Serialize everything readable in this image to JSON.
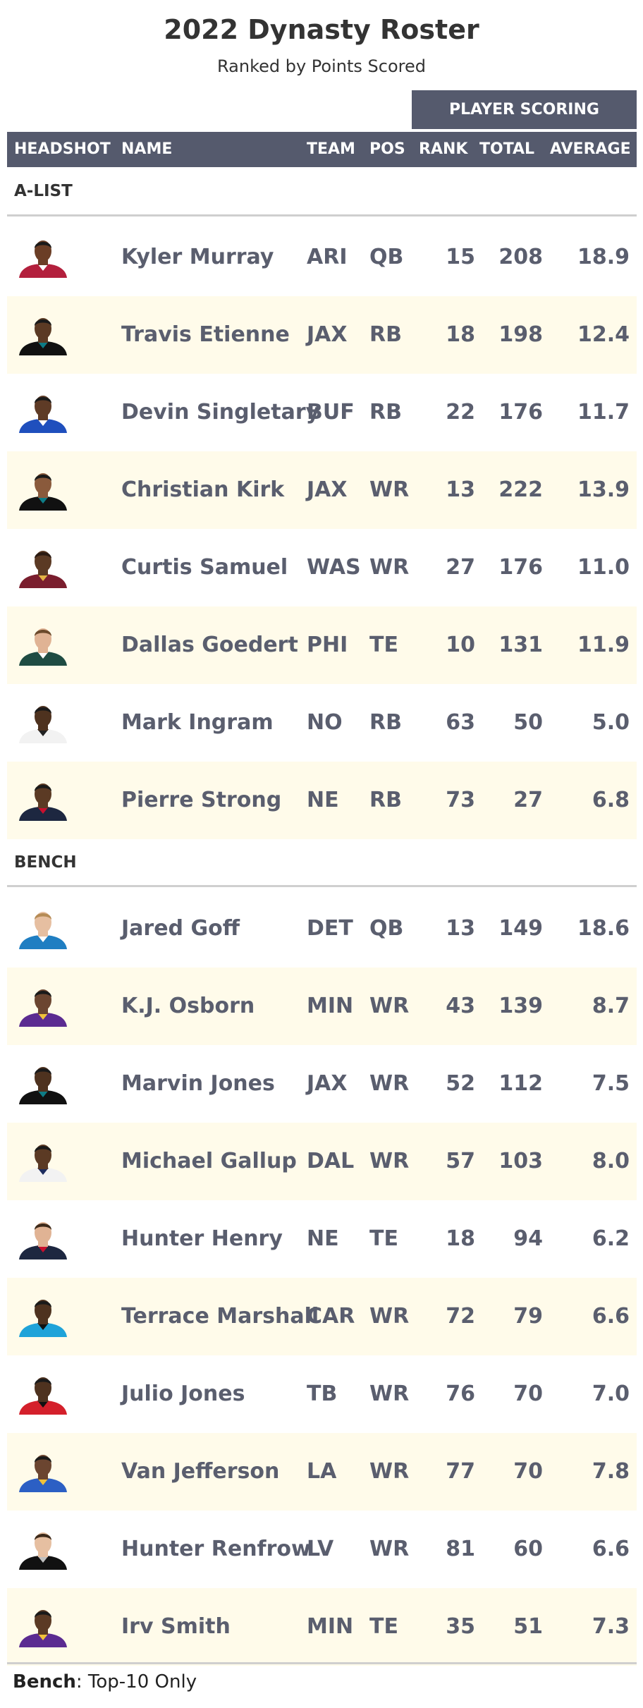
{
  "title": "2022 Dynasty Roster",
  "subtitle": "Ranked by Points Scored",
  "spanner": "PLAYER SCORING",
  "columns": {
    "headshot": "HEADSHOT",
    "name": "NAME",
    "team": "TEAM",
    "pos": "POS",
    "rank": "RANK",
    "total": "TOTAL",
    "average": "AVERAGE"
  },
  "groups": [
    {
      "label": "A-LIST",
      "players": [
        {
          "name": "Kyler Murray",
          "team": "ARI",
          "pos": "QB",
          "rank": "15",
          "total": "208",
          "average": "18.9",
          "jersey": "#b3203d",
          "skin": "#6b3e26",
          "hair": "#1a1a1a",
          "accent": "#ffffff"
        },
        {
          "name": "Travis Etienne",
          "team": "JAX",
          "pos": "RB",
          "rank": "18",
          "total": "198",
          "average": "12.4",
          "jersey": "#111111",
          "skin": "#5b3a24",
          "hair": "#1a1a1a",
          "accent": "#0e7c86"
        },
        {
          "name": "Devin Singletary",
          "team": "BUF",
          "pos": "RB",
          "rank": "22",
          "total": "176",
          "average": "11.7",
          "jersey": "#1f4fbd",
          "skin": "#5e3b26",
          "hair": "#1a1a1a",
          "accent": "#ffffff"
        },
        {
          "name": "Christian Kirk",
          "team": "JAX",
          "pos": "WR",
          "rank": "13",
          "total": "222",
          "average": "13.9",
          "jersey": "#111111",
          "skin": "#8a5a3c",
          "hair": "#1a1a1a",
          "accent": "#0e7c86"
        },
        {
          "name": "Curtis Samuel",
          "team": "WAS",
          "pos": "WR",
          "rank": "27",
          "total": "176",
          "average": "11.0",
          "jersey": "#7a1e2e",
          "skin": "#5b3a24",
          "hair": "#2a1a12",
          "accent": "#e3b344"
        },
        {
          "name": "Dallas Goedert",
          "team": "PHI",
          "pos": "TE",
          "rank": "10",
          "total": "131",
          "average": "11.9",
          "jersey": "#1f4c43",
          "skin": "#e0b394",
          "hair": "#6b4a2c",
          "accent": "#ffffff"
        },
        {
          "name": "Mark Ingram",
          "team": "NO",
          "pos": "RB",
          "rank": "63",
          "total": "50",
          "average": "5.0",
          "jersey": "#f2f2f2",
          "skin": "#4e321f",
          "hair": "#1a1a1a",
          "accent": "#222222"
        },
        {
          "name": "Pierre Strong",
          "team": "NE",
          "pos": "RB",
          "rank": "73",
          "total": "27",
          "average": "6.8",
          "jersey": "#1d2740",
          "skin": "#5b3a24",
          "hair": "#1a1a1a",
          "accent": "#c8102e"
        }
      ]
    },
    {
      "label": "BENCH",
      "players": [
        {
          "name": "Jared Goff",
          "team": "DET",
          "pos": "QB",
          "rank": "13",
          "total": "149",
          "average": "18.6",
          "jersey": "#1f7ec2",
          "skin": "#e6bfa1",
          "hair": "#b58b55",
          "accent": "#ffffff"
        },
        {
          "name": "K.J. Osborn",
          "team": "MIN",
          "pos": "WR",
          "rank": "43",
          "total": "139",
          "average": "8.7",
          "jersey": "#5b2b91",
          "skin": "#6b4530",
          "hair": "#1a1a1a",
          "accent": "#f0c13a"
        },
        {
          "name": "Marvin Jones",
          "team": "JAX",
          "pos": "WR",
          "rank": "52",
          "total": "112",
          "average": "7.5",
          "jersey": "#111111",
          "skin": "#4e321f",
          "hair": "#1a1a1a",
          "accent": "#0e7c86"
        },
        {
          "name": "Michael Gallup",
          "team": "DAL",
          "pos": "WR",
          "rank": "57",
          "total": "103",
          "average": "8.0",
          "jersey": "#f2f2f2",
          "skin": "#5b3a24",
          "hair": "#1a1a1a",
          "accent": "#1d2c5e"
        },
        {
          "name": "Hunter Henry",
          "team": "NE",
          "pos": "TE",
          "rank": "18",
          "total": "94",
          "average": "6.2",
          "jersey": "#1d2740",
          "skin": "#e0b394",
          "hair": "#3d2a1a",
          "accent": "#c8102e"
        },
        {
          "name": "Terrace Marshall",
          "team": "CAR",
          "pos": "WR",
          "rank": "72",
          "total": "79",
          "average": "6.6",
          "jersey": "#1fa3d9",
          "skin": "#4e321f",
          "hair": "#1a1a1a",
          "accent": "#111111"
        },
        {
          "name": "Julio Jones",
          "team": "TB",
          "pos": "WR",
          "rank": "76",
          "total": "70",
          "average": "7.0",
          "jersey": "#d4202b",
          "skin": "#4e321f",
          "hair": "#1a1a1a",
          "accent": "#111111"
        },
        {
          "name": "Van Jefferson",
          "team": "LA",
          "pos": "WR",
          "rank": "77",
          "total": "70",
          "average": "7.8",
          "jersey": "#2c5fc4",
          "skin": "#6b4530",
          "hair": "#1a1a1a",
          "accent": "#f0c13a"
        },
        {
          "name": "Hunter Renfrow",
          "team": "LV",
          "pos": "WR",
          "rank": "81",
          "total": "60",
          "average": "6.6",
          "jersey": "#111111",
          "skin": "#e6bfa1",
          "hair": "#3d2a1a",
          "accent": "#bfbfbf"
        },
        {
          "name": "Irv Smith",
          "team": "MIN",
          "pos": "TE",
          "rank": "35",
          "total": "51",
          "average": "7.3",
          "jersey": "#5b2b91",
          "skin": "#5b3a24",
          "hair": "#1a1a1a",
          "accent": "#f0c13a"
        }
      ]
    }
  ],
  "footer": {
    "bold": "Bench",
    "rest": ": Top-10 Only"
  }
}
